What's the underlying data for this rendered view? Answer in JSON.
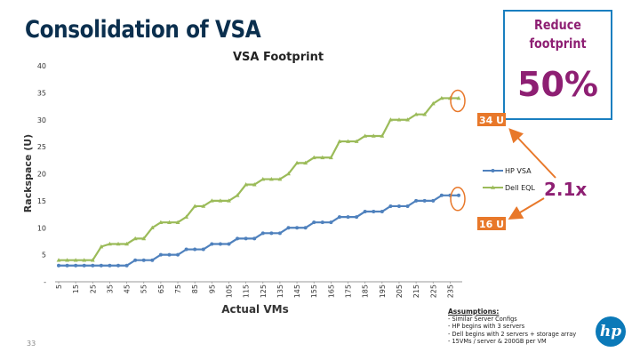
{
  "slide": {
    "title": "Consolidation of VSA",
    "page_number": "33"
  },
  "callout": {
    "line1": "Reduce",
    "line2": "footprint",
    "percent": "50%"
  },
  "ratio_label": "2.1x",
  "assumptions": {
    "heading": "Assumptions:",
    "items": [
      "- Similar Server Configs",
      "- HP begins with 3 servers",
      "- Dell begins with 2 servers + storage array",
      "- 15VMs / server & 200GB per VM"
    ]
  },
  "colors": {
    "title": "#0b2f4e",
    "accent": "#8e1f73",
    "hp_series": "#4f81bd",
    "dell_series": "#9bbb59",
    "arrow": "#e8782a",
    "callout_border": "#1a7fc0"
  },
  "icons": {
    "logo": "hp-logo"
  },
  "chart_data": {
    "type": "line",
    "title": "VSA Footprint",
    "xlabel": "Actual VMs",
    "ylabel": "Rackspace (U)",
    "ylim": [
      0,
      40
    ],
    "y_ticks": [
      "-",
      "5",
      "10",
      "15",
      "20",
      "25",
      "30",
      "35",
      "40"
    ],
    "grid": false,
    "legend_position": "right",
    "x": [
      5,
      10,
      15,
      20,
      25,
      30,
      35,
      40,
      45,
      50,
      55,
      60,
      65,
      70,
      75,
      80,
      85,
      90,
      95,
      100,
      105,
      110,
      115,
      120,
      125,
      130,
      135,
      140,
      145,
      150,
      155,
      160,
      165,
      170,
      175,
      180,
      185,
      190,
      195,
      200,
      205,
      210,
      215,
      220,
      225,
      230,
      235,
      240
    ],
    "x_tick_labels": [
      "5",
      "15",
      "25",
      "35",
      "45",
      "55",
      "65",
      "75",
      "85",
      "95",
      "105",
      "115",
      "125",
      "135",
      "145",
      "155",
      "165",
      "175",
      "185",
      "195",
      "205",
      "215",
      "225",
      "235"
    ],
    "series": [
      {
        "name": "HP VSA",
        "values": [
          3,
          3,
          3,
          3,
          3,
          3,
          3,
          3,
          3,
          4,
          4,
          4,
          5,
          5,
          5,
          6,
          6,
          6,
          7,
          7,
          7,
          8,
          8,
          8,
          9,
          9,
          9,
          10,
          10,
          10,
          11,
          11,
          11,
          12,
          12,
          12,
          13,
          13,
          13,
          14,
          14,
          14,
          15,
          15,
          15,
          16,
          16,
          16
        ]
      },
      {
        "name": "Dell EQL",
        "values": [
          4,
          4,
          4,
          4,
          4,
          6.5,
          7,
          7,
          7,
          8,
          8,
          10,
          11,
          11,
          11,
          12,
          14,
          14,
          15,
          15,
          15,
          16,
          18,
          18,
          19,
          19,
          19,
          20,
          22,
          22,
          23,
          23,
          23,
          26,
          26,
          26,
          27,
          27,
          27,
          30,
          30,
          30,
          31,
          31,
          33,
          34,
          34,
          34
        ]
      }
    ],
    "annotations": [
      "34 U",
      "16 U"
    ]
  }
}
